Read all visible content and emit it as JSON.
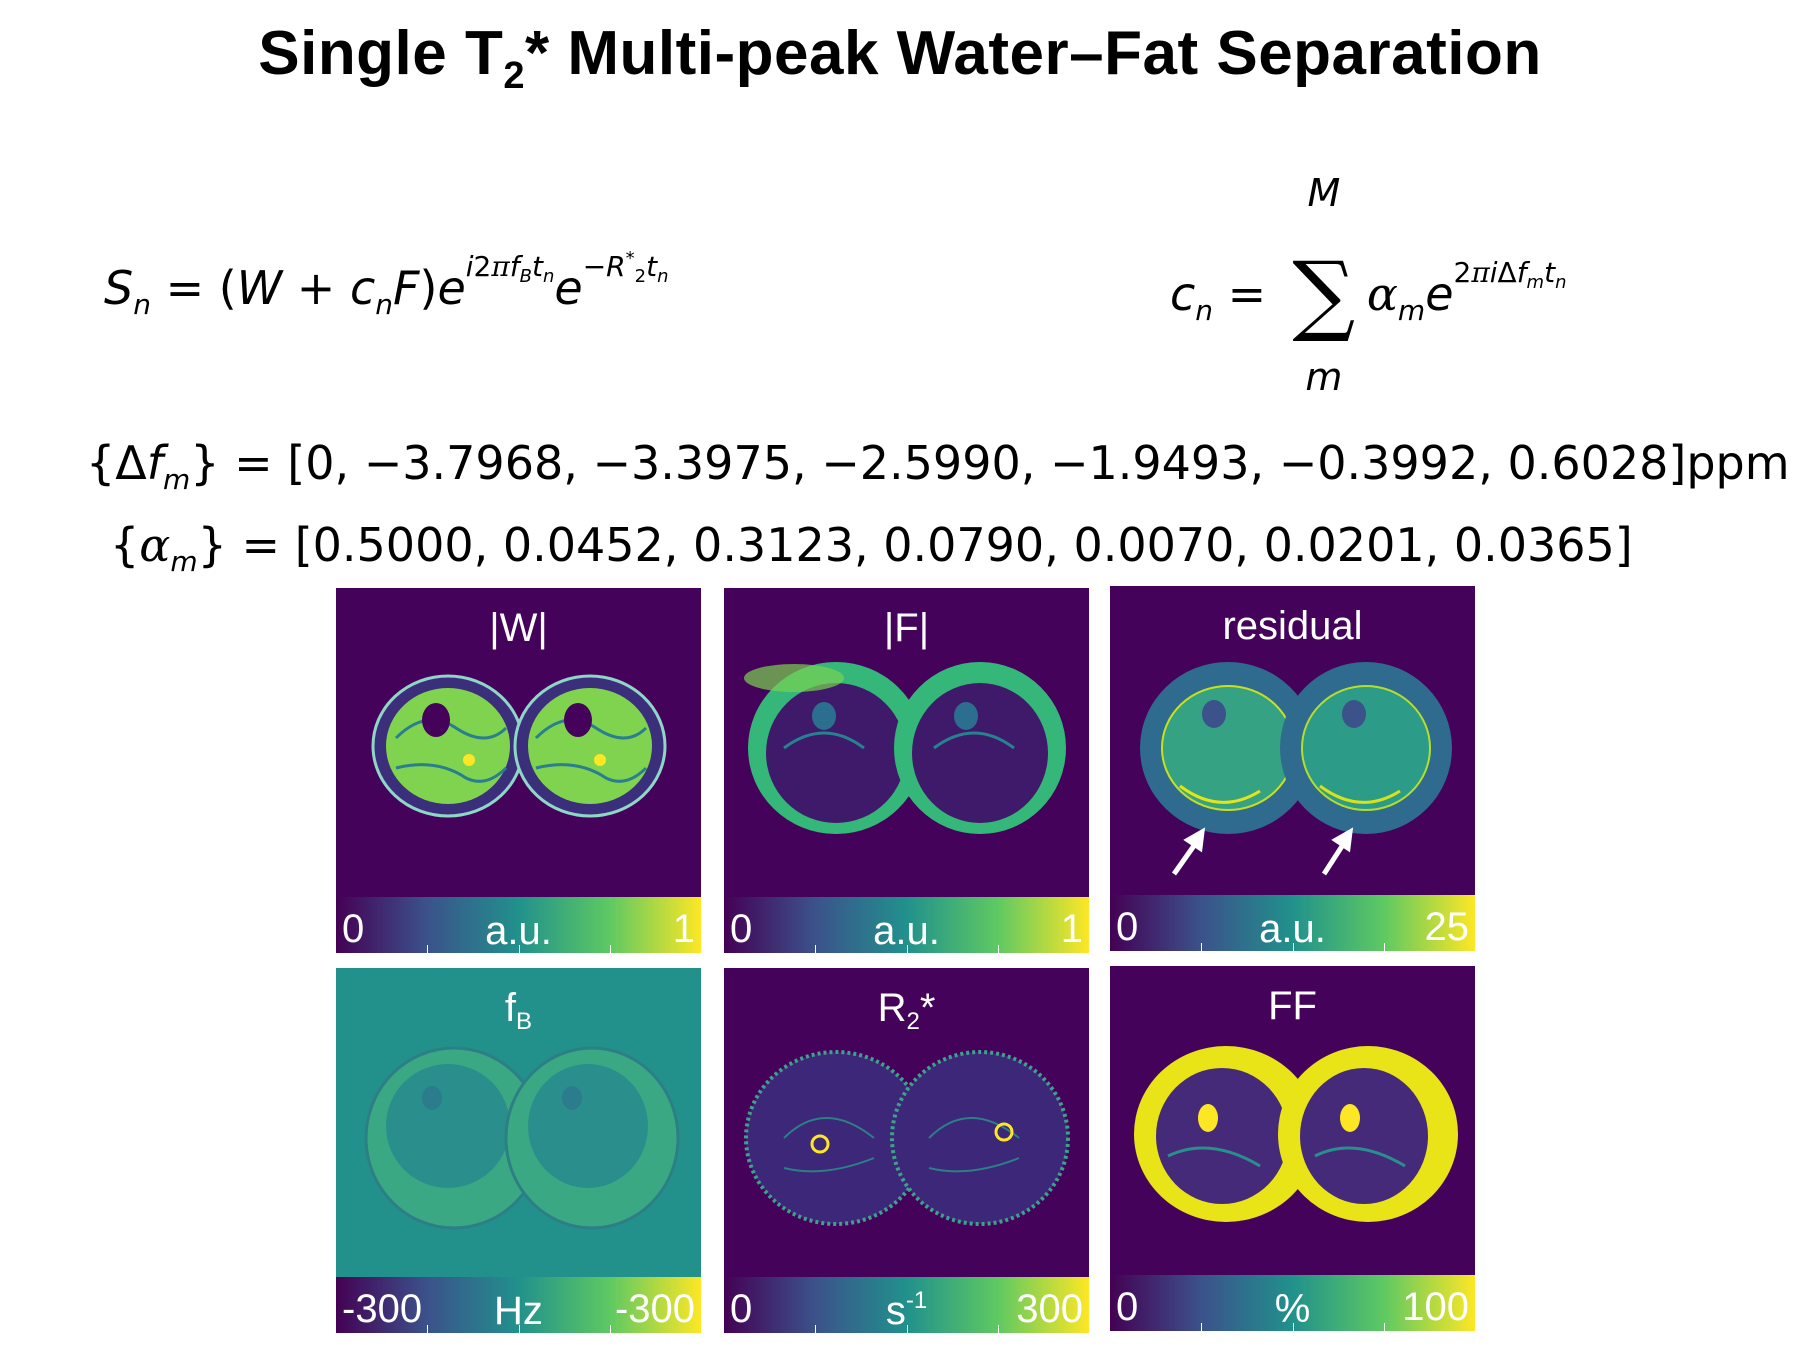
{
  "title": {
    "main_before": "Single T",
    "main_sub": "2",
    "main_after": "* Multi-peak Water–Fat Separation"
  },
  "equations": {
    "signal_model": "S_n = (W + c_n F) e^{i2π f_B t_n} e^{−R_2^* t_n}",
    "fat_model": "c_n = Σ_m^M α_m e^{2πiΔf_m t_n}",
    "sum_upper": "M",
    "sum_lower": "m",
    "delta_f_values": "[0, −3.7968, −3.3975, −2.5990, −1.9493, −0.3992, 0.6028]",
    "delta_f_unit": "ppm",
    "alpha_values": "[0.5000, 0.0452, 0.3123, 0.0790, 0.0070, 0.0201, 0.0365]"
  },
  "panels": [
    {
      "label": "|W|",
      "cbar_min": "0",
      "cbar_unit": "a.u.",
      "cbar_max": "1"
    },
    {
      "label": "|F|",
      "cbar_min": "0",
      "cbar_unit": "a.u.",
      "cbar_max": "1"
    },
    {
      "label": "residual",
      "cbar_min": "0",
      "cbar_unit": "a.u.",
      "cbar_max": "25"
    },
    {
      "label": "f",
      "label_sub": "B",
      "cbar_min": "-300",
      "cbar_unit": "Hz",
      "cbar_max": "-300"
    },
    {
      "label": "R",
      "label_sub": "2",
      "label_after": "*",
      "cbar_min": "0",
      "cbar_unit": "s",
      "cbar_unit_sup": "-1",
      "cbar_max": "300"
    },
    {
      "label": "FF",
      "cbar_min": "0",
      "cbar_unit": "%",
      "cbar_max": "100"
    }
  ],
  "colormap": {
    "name": "viridis",
    "stops": [
      "#440154",
      "#3b528b",
      "#21918c",
      "#5ec962",
      "#fde725"
    ]
  }
}
